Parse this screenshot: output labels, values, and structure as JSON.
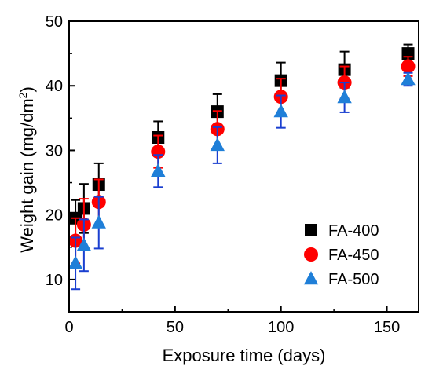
{
  "chart_data": {
    "type": "scatter",
    "title": "",
    "xlabel": "Exposure time (days)",
    "ylabel_main": "Weight gain (mg/dm",
    "ylabel_sup": "2",
    "ylabel_end": ")",
    "xlim": [
      0,
      165
    ],
    "ylim": [
      5,
      50
    ],
    "xticks": [
      0,
      50,
      100,
      150
    ],
    "yticks": [
      10,
      20,
      30,
      40,
      50
    ],
    "xtick_labels": [
      "0",
      "50",
      "100",
      "150"
    ],
    "ytick_labels": [
      "10",
      "20",
      "30",
      "40",
      "50"
    ],
    "legend_position": "bottom-right",
    "grid": false,
    "series": [
      {
        "name": "FA-400",
        "marker": "square",
        "color": "#000000",
        "error_color": "#000000",
        "x": [
          3,
          7,
          14,
          42,
          70,
          100,
          130,
          160
        ],
        "y": [
          19.5,
          21.0,
          24.7,
          32.0,
          36.0,
          40.8,
          42.5,
          45.0
        ],
        "err": [
          2.8,
          3.8,
          3.3,
          2.5,
          2.7,
          2.8,
          2.8,
          1.4
        ]
      },
      {
        "name": "FA-450",
        "marker": "circle",
        "color": "#ff0000",
        "error_color": "#ff0000",
        "x": [
          3,
          7,
          14,
          42,
          70,
          100,
          130,
          160
        ],
        "y": [
          16.0,
          18.5,
          22.0,
          29.8,
          33.3,
          38.3,
          40.5,
          43.0
        ],
        "err": [
          3.5,
          4.0,
          3.5,
          2.5,
          2.8,
          2.8,
          2.5,
          1.5
        ]
      },
      {
        "name": "FA-500",
        "marker": "triangle",
        "color": "#1f7fd8",
        "error_color": "#1a3fd0",
        "x": [
          3,
          7,
          14,
          42,
          70,
          100,
          130,
          160
        ],
        "y": [
          12.5,
          15.3,
          18.8,
          26.8,
          30.8,
          36.0,
          38.2,
          41.0
        ],
        "err": [
          4.0,
          4.0,
          4.0,
          2.5,
          2.8,
          2.5,
          2.3,
          1.0
        ]
      }
    ]
  }
}
